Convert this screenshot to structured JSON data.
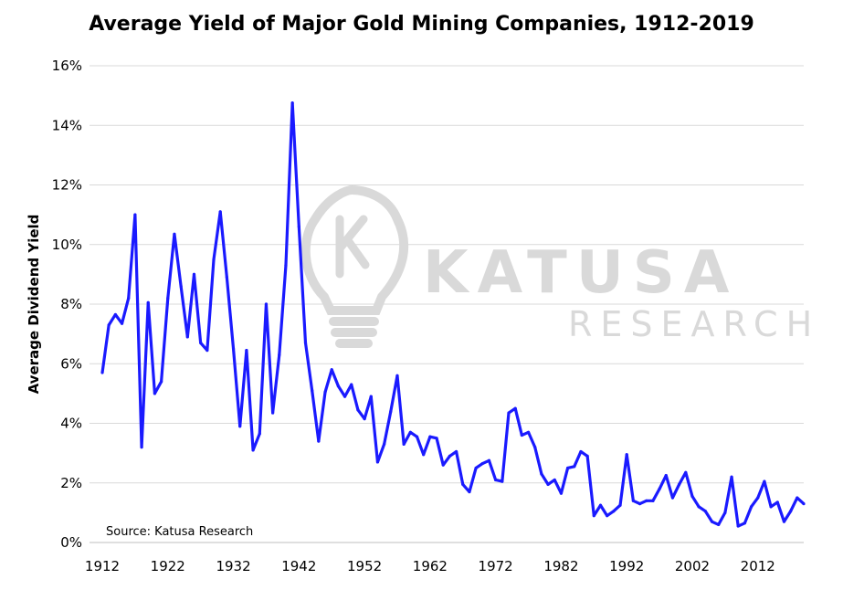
{
  "chart_data": {
    "type": "line",
    "title": "Average Yield of Major Gold Mining Companies, 1912-2019",
    "xlabel": "",
    "ylabel": "Average Dividend Yield",
    "xlim": [
      1912,
      2019
    ],
    "ylim": [
      0,
      16
    ],
    "yticks": [
      "0%",
      "2%",
      "4%",
      "6%",
      "8%",
      "10%",
      "12%",
      "14%",
      "16%"
    ],
    "xticks": [
      "1912",
      "1922",
      "1932",
      "1942",
      "1952",
      "1962",
      "1972",
      "1982",
      "1992",
      "2002",
      "2012"
    ],
    "grid": true,
    "annotation": "Source: Katusa Research",
    "watermark": {
      "big": "KATUSA",
      "small": "RESEARCH"
    },
    "series": [
      {
        "name": "Average Dividend Yield",
        "color": "#1a1aff",
        "x": [
          1912,
          1913,
          1914,
          1915,
          1916,
          1917,
          1918,
          1919,
          1920,
          1921,
          1922,
          1923,
          1924,
          1925,
          1926,
          1927,
          1928,
          1929,
          1930,
          1931,
          1932,
          1933,
          1934,
          1935,
          1936,
          1937,
          1938,
          1939,
          1940,
          1941,
          1942,
          1943,
          1944,
          1945,
          1946,
          1947,
          1948,
          1949,
          1950,
          1951,
          1952,
          1953,
          1954,
          1955,
          1956,
          1957,
          1958,
          1959,
          1960,
          1961,
          1962,
          1963,
          1964,
          1965,
          1966,
          1967,
          1968,
          1969,
          1970,
          1971,
          1972,
          1973,
          1974,
          1975,
          1976,
          1977,
          1978,
          1979,
          1980,
          1981,
          1982,
          1983,
          1984,
          1985,
          1986,
          1987,
          1988,
          1989,
          1990,
          1991,
          1992,
          1993,
          1994,
          1995,
          1996,
          1997,
          1998,
          1999,
          2000,
          2001,
          2002,
          2003,
          2004,
          2005,
          2006,
          2007,
          2008,
          2009,
          2010,
          2011,
          2012,
          2013,
          2014,
          2015,
          2016,
          2017,
          2018,
          2019
        ],
        "values": [
          5.7,
          7.3,
          7.65,
          7.35,
          8.2,
          11.0,
          3.2,
          8.05,
          5.0,
          5.4,
          8.2,
          10.35,
          8.6,
          6.9,
          9.0,
          6.7,
          6.45,
          9.5,
          11.1,
          8.9,
          6.5,
          3.9,
          6.45,
          3.1,
          3.65,
          8.0,
          4.35,
          6.3,
          9.3,
          14.75,
          10.6,
          6.7,
          5.1,
          3.4,
          5.05,
          5.8,
          5.25,
          4.9,
          5.3,
          4.45,
          4.15,
          4.9,
          2.7,
          3.3,
          4.4,
          5.6,
          3.3,
          3.7,
          3.55,
          2.95,
          3.55,
          3.5,
          2.6,
          2.9,
          3.05,
          1.95,
          1.7,
          2.5,
          2.65,
          2.75,
          2.1,
          2.05,
          4.35,
          4.5,
          3.6,
          3.7,
          3.2,
          2.3,
          1.95,
          2.1,
          1.65,
          2.5,
          2.55,
          3.05,
          2.9,
          0.9,
          1.25,
          0.9,
          1.05,
          1.25,
          2.95,
          1.4,
          1.3,
          1.4,
          1.4,
          1.8,
          2.25,
          1.5,
          1.95,
          2.35,
          1.55,
          1.2,
          1.05,
          0.7,
          0.6,
          1.0,
          2.2,
          0.55,
          0.65,
          1.2,
          1.5,
          2.05,
          1.2,
          1.35,
          0.7,
          1.05,
          1.5,
          1.3
        ]
      }
    ]
  }
}
